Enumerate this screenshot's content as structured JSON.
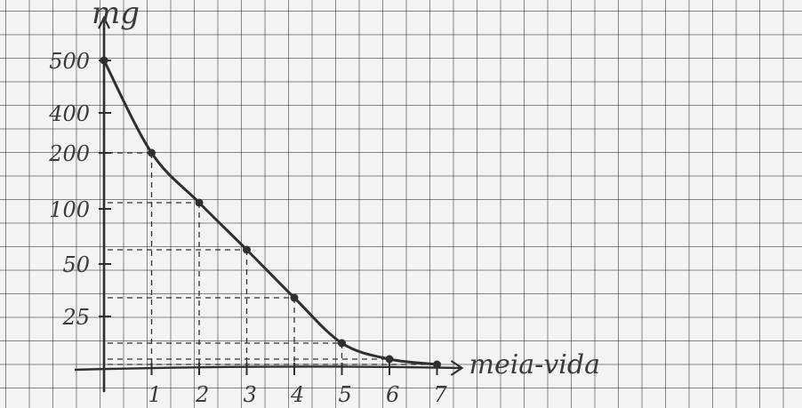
{
  "chart_data": {
    "type": "line",
    "ylabel": "mg",
    "xlabel": "meia-vida",
    "x_ticks": [
      1,
      2,
      3,
      4,
      5,
      6,
      7
    ],
    "y_ticks": [
      "500",
      "400",
      "200",
      "100",
      "50",
      "25"
    ],
    "series": [
      {
        "x": [
          0,
          1,
          2,
          3,
          4,
          5,
          6,
          7
        ],
        "y": [
          500,
          250,
          125,
          62.5,
          31.25,
          15.6,
          7.8,
          3.9
        ]
      }
    ],
    "line_color": "#2f2f2f"
  }
}
